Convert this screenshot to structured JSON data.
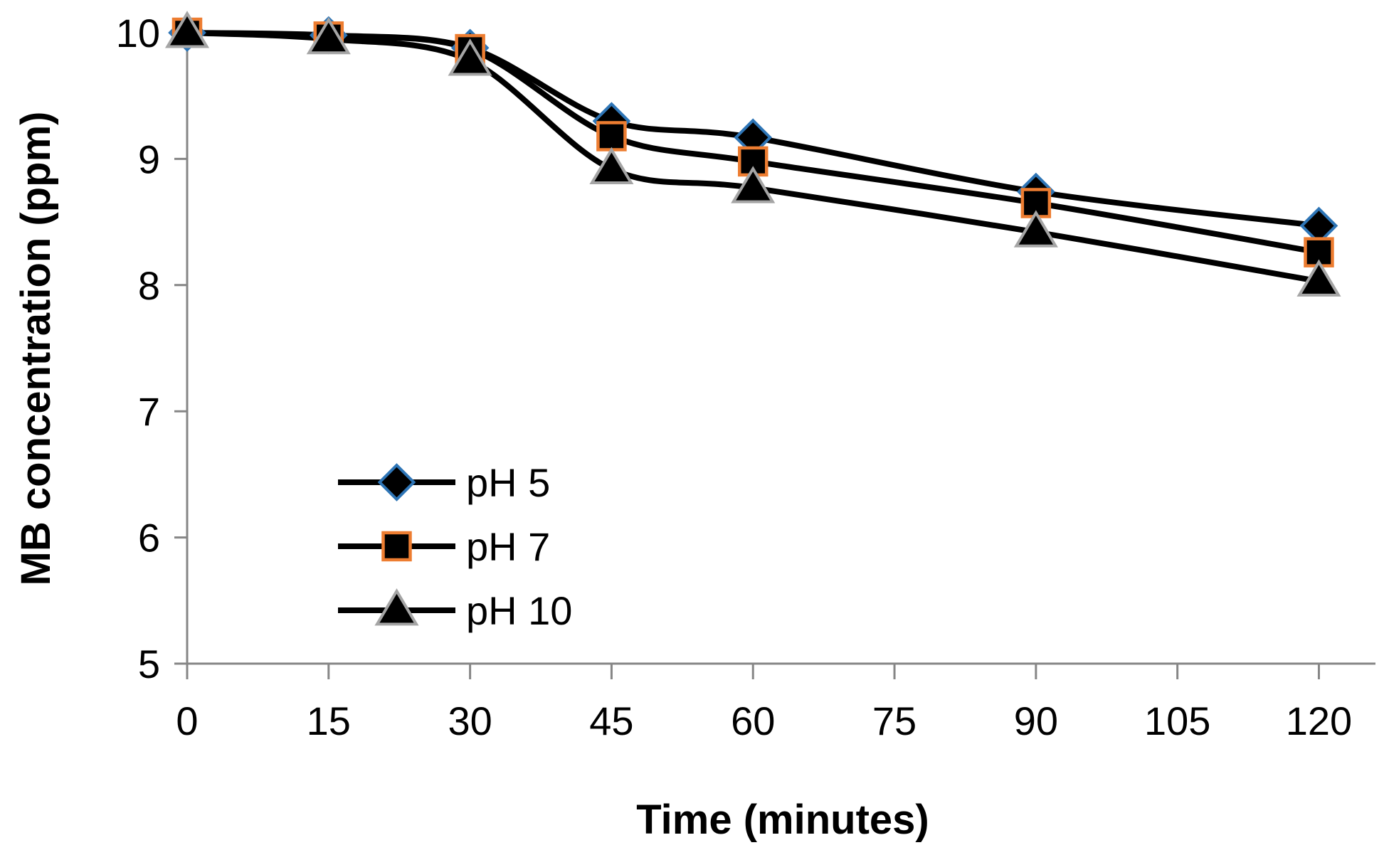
{
  "chart_data": {
    "type": "line",
    "title": "",
    "xlabel": "Time (minutes)",
    "ylabel": "MB concentration (ppm)",
    "xlim": [
      0,
      126
    ],
    "ylim": [
      5,
      10
    ],
    "xticks": [
      0,
      15,
      30,
      45,
      60,
      75,
      90,
      105,
      120
    ],
    "yticks": [
      5,
      6,
      7,
      8,
      9,
      10
    ],
    "grid": false,
    "smooth": true,
    "legend_position": "bottom-left",
    "x": [
      0,
      15,
      30,
      45,
      60,
      90,
      120
    ],
    "series": [
      {
        "name": "pH 5",
        "marker": "diamond",
        "values": [
          10.0,
          9.98,
          9.88,
          9.3,
          9.17,
          8.74,
          8.47
        ],
        "marker_fill": "#000000",
        "marker_stroke": "#2e75b6"
      },
      {
        "name": "pH 7",
        "marker": "square",
        "values": [
          10.0,
          9.97,
          9.87,
          9.18,
          8.98,
          8.65,
          8.26
        ],
        "marker_fill": "#000000",
        "marker_stroke": "#ed7d31"
      },
      {
        "name": "pH 10",
        "marker": "triangle",
        "values": [
          10.0,
          9.95,
          9.78,
          8.92,
          8.77,
          8.42,
          8.03
        ],
        "marker_fill": "#000000",
        "marker_stroke": "#a5a5a5"
      }
    ],
    "line_color": "#000000",
    "axis_color": "#868686"
  }
}
